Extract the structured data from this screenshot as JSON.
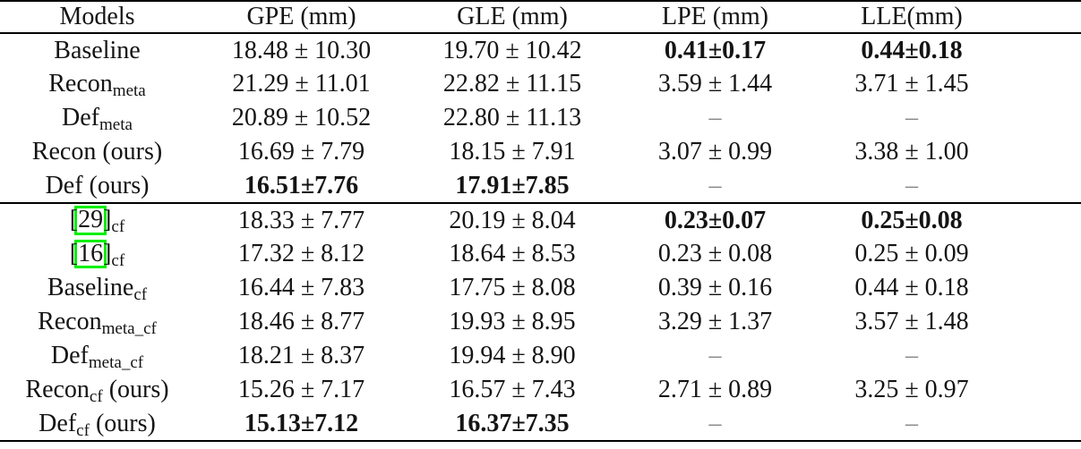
{
  "table": {
    "headers": [
      "Models",
      "GPE (mm)",
      "GLE (mm)",
      "LPE (mm)",
      "LLE(mm)"
    ],
    "dash": "–",
    "colors": {
      "citation_box": "#00ef00",
      "dash": "#888888",
      "rule": "#000000"
    },
    "rows": [
      {
        "model": {
          "base": "Baseline"
        },
        "cells": [
          {
            "t": "18.48 ± 10.30"
          },
          {
            "t": "19.70 ± 10.42"
          },
          {
            "t": "0.41±0.17",
            "bold": true
          },
          {
            "t": "0.44±0.18",
            "bold": true
          }
        ]
      },
      {
        "model": {
          "base": "Recon",
          "sub": "meta"
        },
        "cells": [
          {
            "t": "21.29 ± 11.01"
          },
          {
            "t": "22.82 ± 11.15"
          },
          {
            "t": "3.59 ± 1.44"
          },
          {
            "t": "3.71 ± 1.45"
          }
        ]
      },
      {
        "model": {
          "base": "Def",
          "sub": "meta"
        },
        "cells": [
          {
            "t": "20.89 ± 10.52"
          },
          {
            "t": "22.80 ± 11.13"
          },
          {
            "dash": true
          },
          {
            "dash": true
          }
        ]
      },
      {
        "model": {
          "base": "Recon",
          "suffix": " (ours)"
        },
        "cells": [
          {
            "t": "16.69 ± 7.79"
          },
          {
            "t": "18.15 ± 7.91"
          },
          {
            "t": "3.07 ± 0.99"
          },
          {
            "t": "3.38 ± 1.00"
          }
        ]
      },
      {
        "model": {
          "base": "Def",
          "suffix": " (ours)"
        },
        "section_end": true,
        "cells": [
          {
            "t": "16.51±7.76",
            "bold": true
          },
          {
            "t": "17.91±7.85",
            "bold": true
          },
          {
            "dash": true
          },
          {
            "dash": true
          }
        ]
      },
      {
        "model": {
          "cite": "29",
          "sub": "cf"
        },
        "cells": [
          {
            "t": "18.33 ± 7.77"
          },
          {
            "t": "20.19 ± 8.04"
          },
          {
            "t": "0.23±0.07",
            "bold": true
          },
          {
            "t": "0.25±0.08",
            "bold": true
          }
        ]
      },
      {
        "model": {
          "cite": "16",
          "sub": "cf"
        },
        "cells": [
          {
            "t": "17.32 ± 8.12"
          },
          {
            "t": "18.64 ± 8.53"
          },
          {
            "t": "0.23 ± 0.08"
          },
          {
            "t": "0.25 ± 0.09"
          }
        ]
      },
      {
        "model": {
          "base": "Baseline",
          "sub": "cf"
        },
        "cells": [
          {
            "t": "16.44 ± 7.83"
          },
          {
            "t": "17.75 ± 8.08"
          },
          {
            "t": "0.39 ± 0.16"
          },
          {
            "t": "0.44 ± 0.18"
          }
        ]
      },
      {
        "model": {
          "base": "Recon",
          "sub": "meta_cf"
        },
        "cells": [
          {
            "t": "18.46 ± 8.77"
          },
          {
            "t": "19.93 ± 8.95"
          },
          {
            "t": "3.29 ± 1.37"
          },
          {
            "t": "3.57 ± 1.48"
          }
        ]
      },
      {
        "model": {
          "base": "Def",
          "sub": "meta_cf"
        },
        "cells": [
          {
            "t": "18.21 ± 8.37"
          },
          {
            "t": "19.94 ± 8.90"
          },
          {
            "dash": true
          },
          {
            "dash": true
          }
        ]
      },
      {
        "model": {
          "base": "Recon",
          "sub": "cf",
          "suffix": " (ours)"
        },
        "cells": [
          {
            "t": "15.26 ± 7.17"
          },
          {
            "t": "16.57 ± 7.43"
          },
          {
            "t": "2.71 ± 0.89"
          },
          {
            "t": "3.25 ± 0.97"
          }
        ]
      },
      {
        "model": {
          "base": "Def",
          "sub": "cf",
          "suffix": " (ours)"
        },
        "cells": [
          {
            "t": "15.13±7.12",
            "bold": true
          },
          {
            "t": "16.37±7.35",
            "bold": true
          },
          {
            "dash": true
          },
          {
            "dash": true
          }
        ]
      }
    ]
  }
}
